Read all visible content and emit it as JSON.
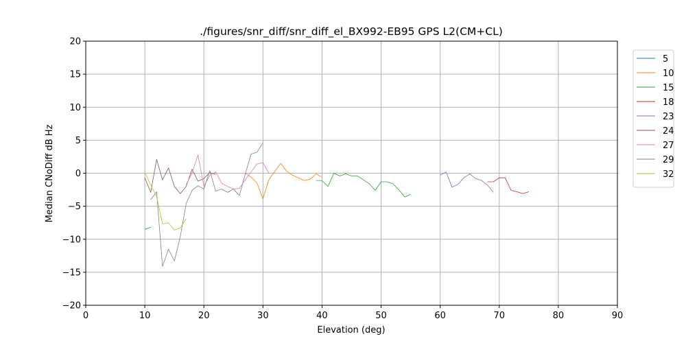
{
  "chart_data": {
    "type": "line",
    "title": "./figures/snr_diff/snr_diff_el_BX992-EB95 GPS  L2(CM+CL)",
    "xlabel": "Elevation (deg)",
    "ylabel": "Median CNoDiff dB Hz",
    "xlim": [
      0,
      90
    ],
    "ylim": [
      -20,
      20
    ],
    "xticks": [
      0,
      10,
      20,
      30,
      40,
      50,
      60,
      70,
      80,
      90
    ],
    "yticks": [
      -20,
      -15,
      -10,
      -5,
      0,
      5,
      10,
      15,
      20
    ],
    "grid": true,
    "legend_position": "outside-right",
    "series": [
      {
        "name": "5",
        "color": "#1f77b4",
        "x": [
          10,
          11
        ],
        "y": [
          -8.5,
          -8.2
        ]
      },
      {
        "name": "10",
        "color": "#ff7f0e",
        "x": [
          27,
          28,
          29,
          30,
          31,
          32,
          33,
          34,
          35,
          36,
          37,
          38,
          39,
          40
        ],
        "y": [
          0.0,
          -0.6,
          -1.5,
          -3.9,
          -1.0,
          0.3,
          1.5,
          0.3,
          -0.3,
          -0.7,
          -1.1,
          -0.9,
          -0.1,
          -0.6
        ]
      },
      {
        "name": "15",
        "color": "#2ca02c",
        "x": [
          39,
          40,
          41,
          42,
          43,
          44,
          45,
          46,
          47,
          48,
          49,
          50,
          51,
          52,
          53,
          54,
          55
        ],
        "y": [
          -1.1,
          -1.1,
          -2.0,
          0.0,
          -0.4,
          -0.1,
          -0.4,
          -0.4,
          -1.0,
          -1.6,
          -2.6,
          -1.3,
          -1.3,
          -1.6,
          -2.5,
          -3.6,
          -3.2
        ]
      },
      {
        "name": "18",
        "color": "#d62728",
        "x": [
          68,
          69,
          70,
          71,
          72,
          73,
          74,
          75
        ],
        "y": [
          -1.3,
          -1.3,
          -0.7,
          -0.7,
          -2.6,
          -2.8,
          -3.1,
          -2.8
        ]
      },
      {
        "name": "23",
        "color": "#9467bd",
        "x": [
          60,
          61,
          62,
          63,
          64,
          65,
          66,
          67,
          68,
          69
        ],
        "y": [
          -0.3,
          0.2,
          -2.1,
          -1.7,
          -0.7,
          -0.1,
          -0.8,
          -1.1,
          -1.8,
          -2.9
        ]
      },
      {
        "name": "24",
        "color": "#8c564b",
        "x": [
          10,
          11,
          12,
          13,
          14,
          15,
          16,
          17,
          18,
          19,
          20,
          21,
          22
        ],
        "y": [
          -0.7,
          -2.9,
          2.1,
          -1.0,
          0.8,
          -2.0,
          -3.1,
          -2.0,
          0.6,
          -1.2,
          -0.8,
          0.1,
          -0.2
        ]
      },
      {
        "name": "27",
        "color": "#e377c2",
        "x": [
          17,
          18,
          19,
          20,
          21,
          22,
          23,
          24,
          25,
          26,
          27,
          28,
          29,
          30,
          31
        ],
        "y": [
          -1.7,
          0.0,
          2.8,
          -2.0,
          -0.3,
          0.2,
          -1.5,
          -2.0,
          -2.4,
          -2.3,
          -1.0,
          0.2,
          1.4,
          1.6,
          0.0
        ]
      },
      {
        "name": "29",
        "color": "#7f7f7f",
        "x": [
          11,
          12,
          13,
          14,
          15,
          16,
          17,
          18,
          19,
          20,
          21,
          22,
          23,
          24,
          25,
          26,
          27,
          28,
          29,
          30
        ],
        "y": [
          -4.0,
          -2.8,
          -14.1,
          -11.5,
          -13.3,
          -9.6,
          -4.6,
          -2.6,
          -1.9,
          -2.4,
          0.4,
          -2.7,
          -2.4,
          -2.9,
          -2.4,
          -3.4,
          -0.1,
          2.9,
          3.2,
          4.6
        ]
      },
      {
        "name": "32",
        "color": "#bcbd22",
        "x": [
          10,
          11,
          12,
          13,
          14,
          15,
          16,
          17
        ],
        "y": [
          0.2,
          -1.8,
          -3.5,
          -7.7,
          -7.5,
          -8.6,
          -8.3,
          -6.9
        ]
      }
    ]
  }
}
